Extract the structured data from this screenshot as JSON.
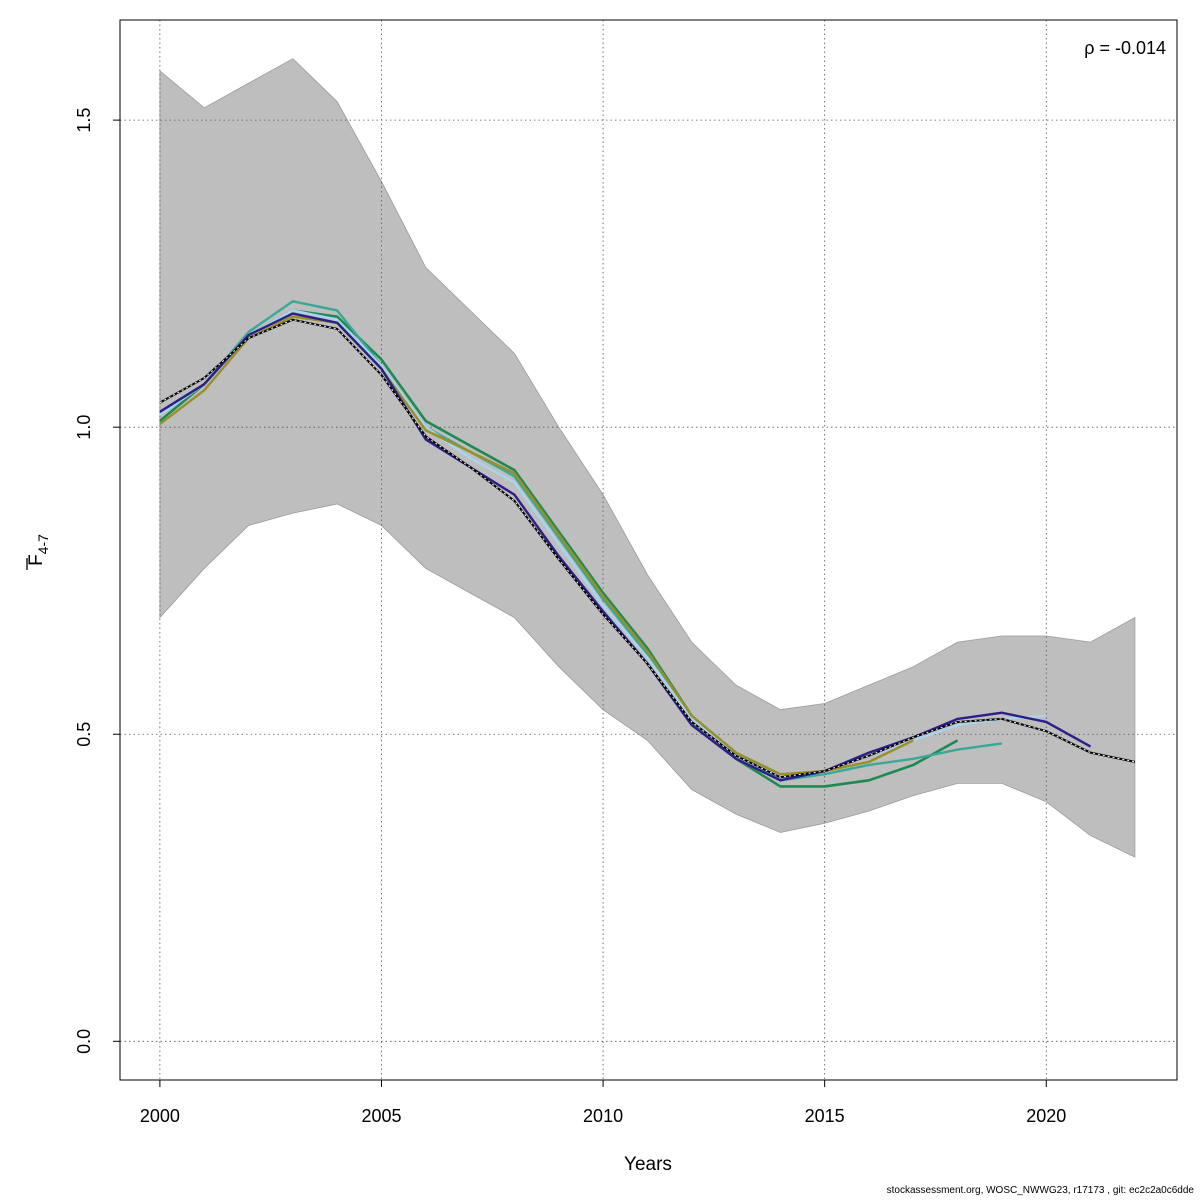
{
  "chart_data": {
    "type": "line",
    "xlabel": "Years",
    "ylabel_main": "F",
    "ylabel_sub": "4-7",
    "annotation": "ρ = -0.014",
    "xlim": [
      1999.1,
      2022.95
    ],
    "ylim": [
      -0.063,
      1.663
    ],
    "x_ticks": [
      2000,
      2005,
      2010,
      2015,
      2020
    ],
    "y_ticks": [
      0.0,
      0.5,
      1.0,
      1.5
    ],
    "y_tick_labels": [
      "0.0",
      "0.5",
      "1.0",
      "1.5"
    ],
    "grid": true,
    "confidence_band": {
      "color": "#bebebe",
      "x": [
        2000,
        2001,
        2002,
        2003,
        2004,
        2005,
        2006,
        2007,
        2008,
        2009,
        2010,
        2011,
        2012,
        2013,
        2014,
        2015,
        2016,
        2017,
        2018,
        2019,
        2020,
        2021,
        2022
      ],
      "upper": [
        1.58,
        1.52,
        1.56,
        1.6,
        1.53,
        1.4,
        1.26,
        1.19,
        1.12,
        1.0,
        0.89,
        0.76,
        0.65,
        0.58,
        0.54,
        0.55,
        0.58,
        0.61,
        0.65,
        0.66,
        0.66,
        0.65,
        0.69
      ],
      "lower": [
        0.69,
        0.77,
        0.84,
        0.86,
        0.875,
        0.84,
        0.77,
        0.73,
        0.69,
        0.61,
        0.54,
        0.49,
        0.41,
        0.37,
        0.34,
        0.355,
        0.375,
        0.4,
        0.42,
        0.42,
        0.39,
        0.335,
        0.3
      ]
    },
    "series": [
      {
        "color": "#1e8a52",
        "width": 2.6,
        "x": [
          2000,
          2001,
          2002,
          2003,
          2004,
          2005,
          2006,
          2007,
          2008,
          2009,
          2010,
          2011,
          2012,
          2013,
          2014,
          2015,
          2016,
          2017,
          2018
        ],
        "values": [
          1.01,
          1.07,
          1.15,
          1.19,
          1.18,
          1.11,
          1.01,
          0.97,
          0.93,
          0.83,
          0.73,
          0.64,
          0.53,
          0.46,
          0.415,
          0.415,
          0.425,
          0.45,
          0.49
        ]
      },
      {
        "color": "#3aa897",
        "width": 2.4,
        "x": [
          2000,
          2001,
          2002,
          2003,
          2004,
          2005,
          2006,
          2007,
          2008,
          2009,
          2010,
          2011,
          2012,
          2013,
          2014,
          2015,
          2016,
          2017,
          2018,
          2019
        ],
        "values": [
          1.02,
          1.07,
          1.155,
          1.205,
          1.19,
          1.1,
          1.0,
          0.96,
          0.92,
          0.82,
          0.72,
          0.63,
          0.53,
          0.47,
          0.425,
          0.435,
          0.45,
          0.46,
          0.475,
          0.485
        ]
      },
      {
        "color": "#a8d4ec",
        "width": 2.4,
        "x": [
          2000,
          2001,
          2002,
          2003,
          2004,
          2005,
          2006,
          2007,
          2008,
          2009,
          2010,
          2011,
          2012,
          2013,
          2014,
          2015,
          2016,
          2017,
          2018,
          2019,
          2020
        ],
        "values": [
          1.02,
          1.07,
          1.15,
          1.19,
          1.175,
          1.1,
          1.0,
          0.95,
          0.91,
          0.81,
          0.71,
          0.625,
          0.525,
          0.465,
          0.43,
          0.44,
          0.465,
          0.49,
          0.515,
          0.525,
          0.53
        ]
      },
      {
        "color": "#9a8f27",
        "width": 2.4,
        "x": [
          2000,
          2001,
          2002,
          2003,
          2004,
          2005,
          2006,
          2007,
          2008,
          2009,
          2010,
          2011,
          2012,
          2013,
          2014,
          2015,
          2016,
          2017
        ],
        "values": [
          1.005,
          1.06,
          1.145,
          1.18,
          1.17,
          1.095,
          0.995,
          0.96,
          0.925,
          0.825,
          0.725,
          0.635,
          0.53,
          0.47,
          0.435,
          0.44,
          0.455,
          0.49
        ]
      },
      {
        "color": "#2b1e8a",
        "width": 2.4,
        "x": [
          2000,
          2001,
          2002,
          2003,
          2004,
          2005,
          2006,
          2007,
          2008,
          2009,
          2010,
          2011,
          2012,
          2013,
          2014,
          2015,
          2016,
          2017,
          2018,
          2019,
          2020,
          2021
        ],
        "values": [
          1.025,
          1.07,
          1.15,
          1.185,
          1.17,
          1.095,
          0.98,
          0.935,
          0.89,
          0.79,
          0.7,
          0.615,
          0.515,
          0.46,
          0.425,
          0.44,
          0.47,
          0.495,
          0.525,
          0.535,
          0.52,
          0.48
        ]
      },
      {
        "color": "#000000",
        "width": 2.0,
        "x": [
          2000,
          2001,
          2002,
          2003,
          2004,
          2005,
          2006,
          2007,
          2008,
          2009,
          2010,
          2011,
          2012,
          2013,
          2014,
          2015,
          2016,
          2017,
          2018,
          2019,
          2020,
          2021,
          2022
        ],
        "values": [
          1.04,
          1.08,
          1.145,
          1.175,
          1.16,
          1.085,
          0.985,
          0.935,
          0.88,
          0.785,
          0.695,
          0.615,
          0.52,
          0.465,
          0.43,
          0.44,
          0.465,
          0.495,
          0.52,
          0.525,
          0.505,
          0.47,
          0.455
        ]
      }
    ]
  },
  "footer": "stockassessment.org, WOSC_NWWG23, r17173 , git: ec2c2a0c6dde"
}
